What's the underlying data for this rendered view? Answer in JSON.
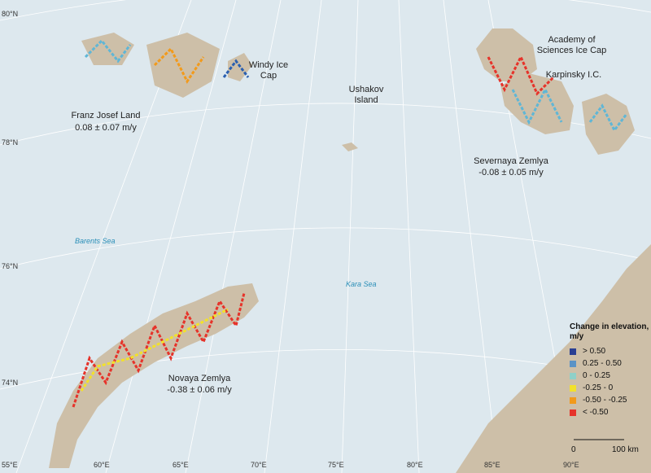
{
  "map": {
    "latitude_labels": [
      "80°N",
      "78°N",
      "76°N",
      "74°N"
    ],
    "longitude_labels": [
      "55°E",
      "60°E",
      "65°E",
      "70°E",
      "75°E",
      "80°E",
      "85°E",
      "90°E"
    ],
    "places": [
      "Windy Ice Cap",
      "Ushakov Island",
      "Academy of Sciences Ice Cap",
      "Karpinsky I.C.",
      "Franz Josef Land",
      "0.08 ± 0.07 m/y",
      "Severnaya Zemlya",
      "-0.08 ± 0.05 m/y",
      "Novaya Zemlya",
      "-0.38 ± 0.06 m/y"
    ],
    "seas": [
      "Barents Sea",
      "Kara Sea"
    ],
    "legend": {
      "title": "Change in elevation, m/y",
      "items": [
        {
          "label": "> 0.50",
          "color": "#2a3f93"
        },
        {
          "label": "0.25 - 0.50",
          "color": "#5b93c6"
        },
        {
          "label": "0 - 0.25",
          "color": "#8fd0c8"
        },
        {
          "label": "-0.25 - 0",
          "color": "#f2e12b"
        },
        {
          "label": "-0.50 - -0.25",
          "color": "#f29a1b"
        },
        {
          "label": "< -0.50",
          "color": "#e6332a"
        }
      ]
    },
    "scale": {
      "start": "0",
      "end": "100 km"
    }
  }
}
